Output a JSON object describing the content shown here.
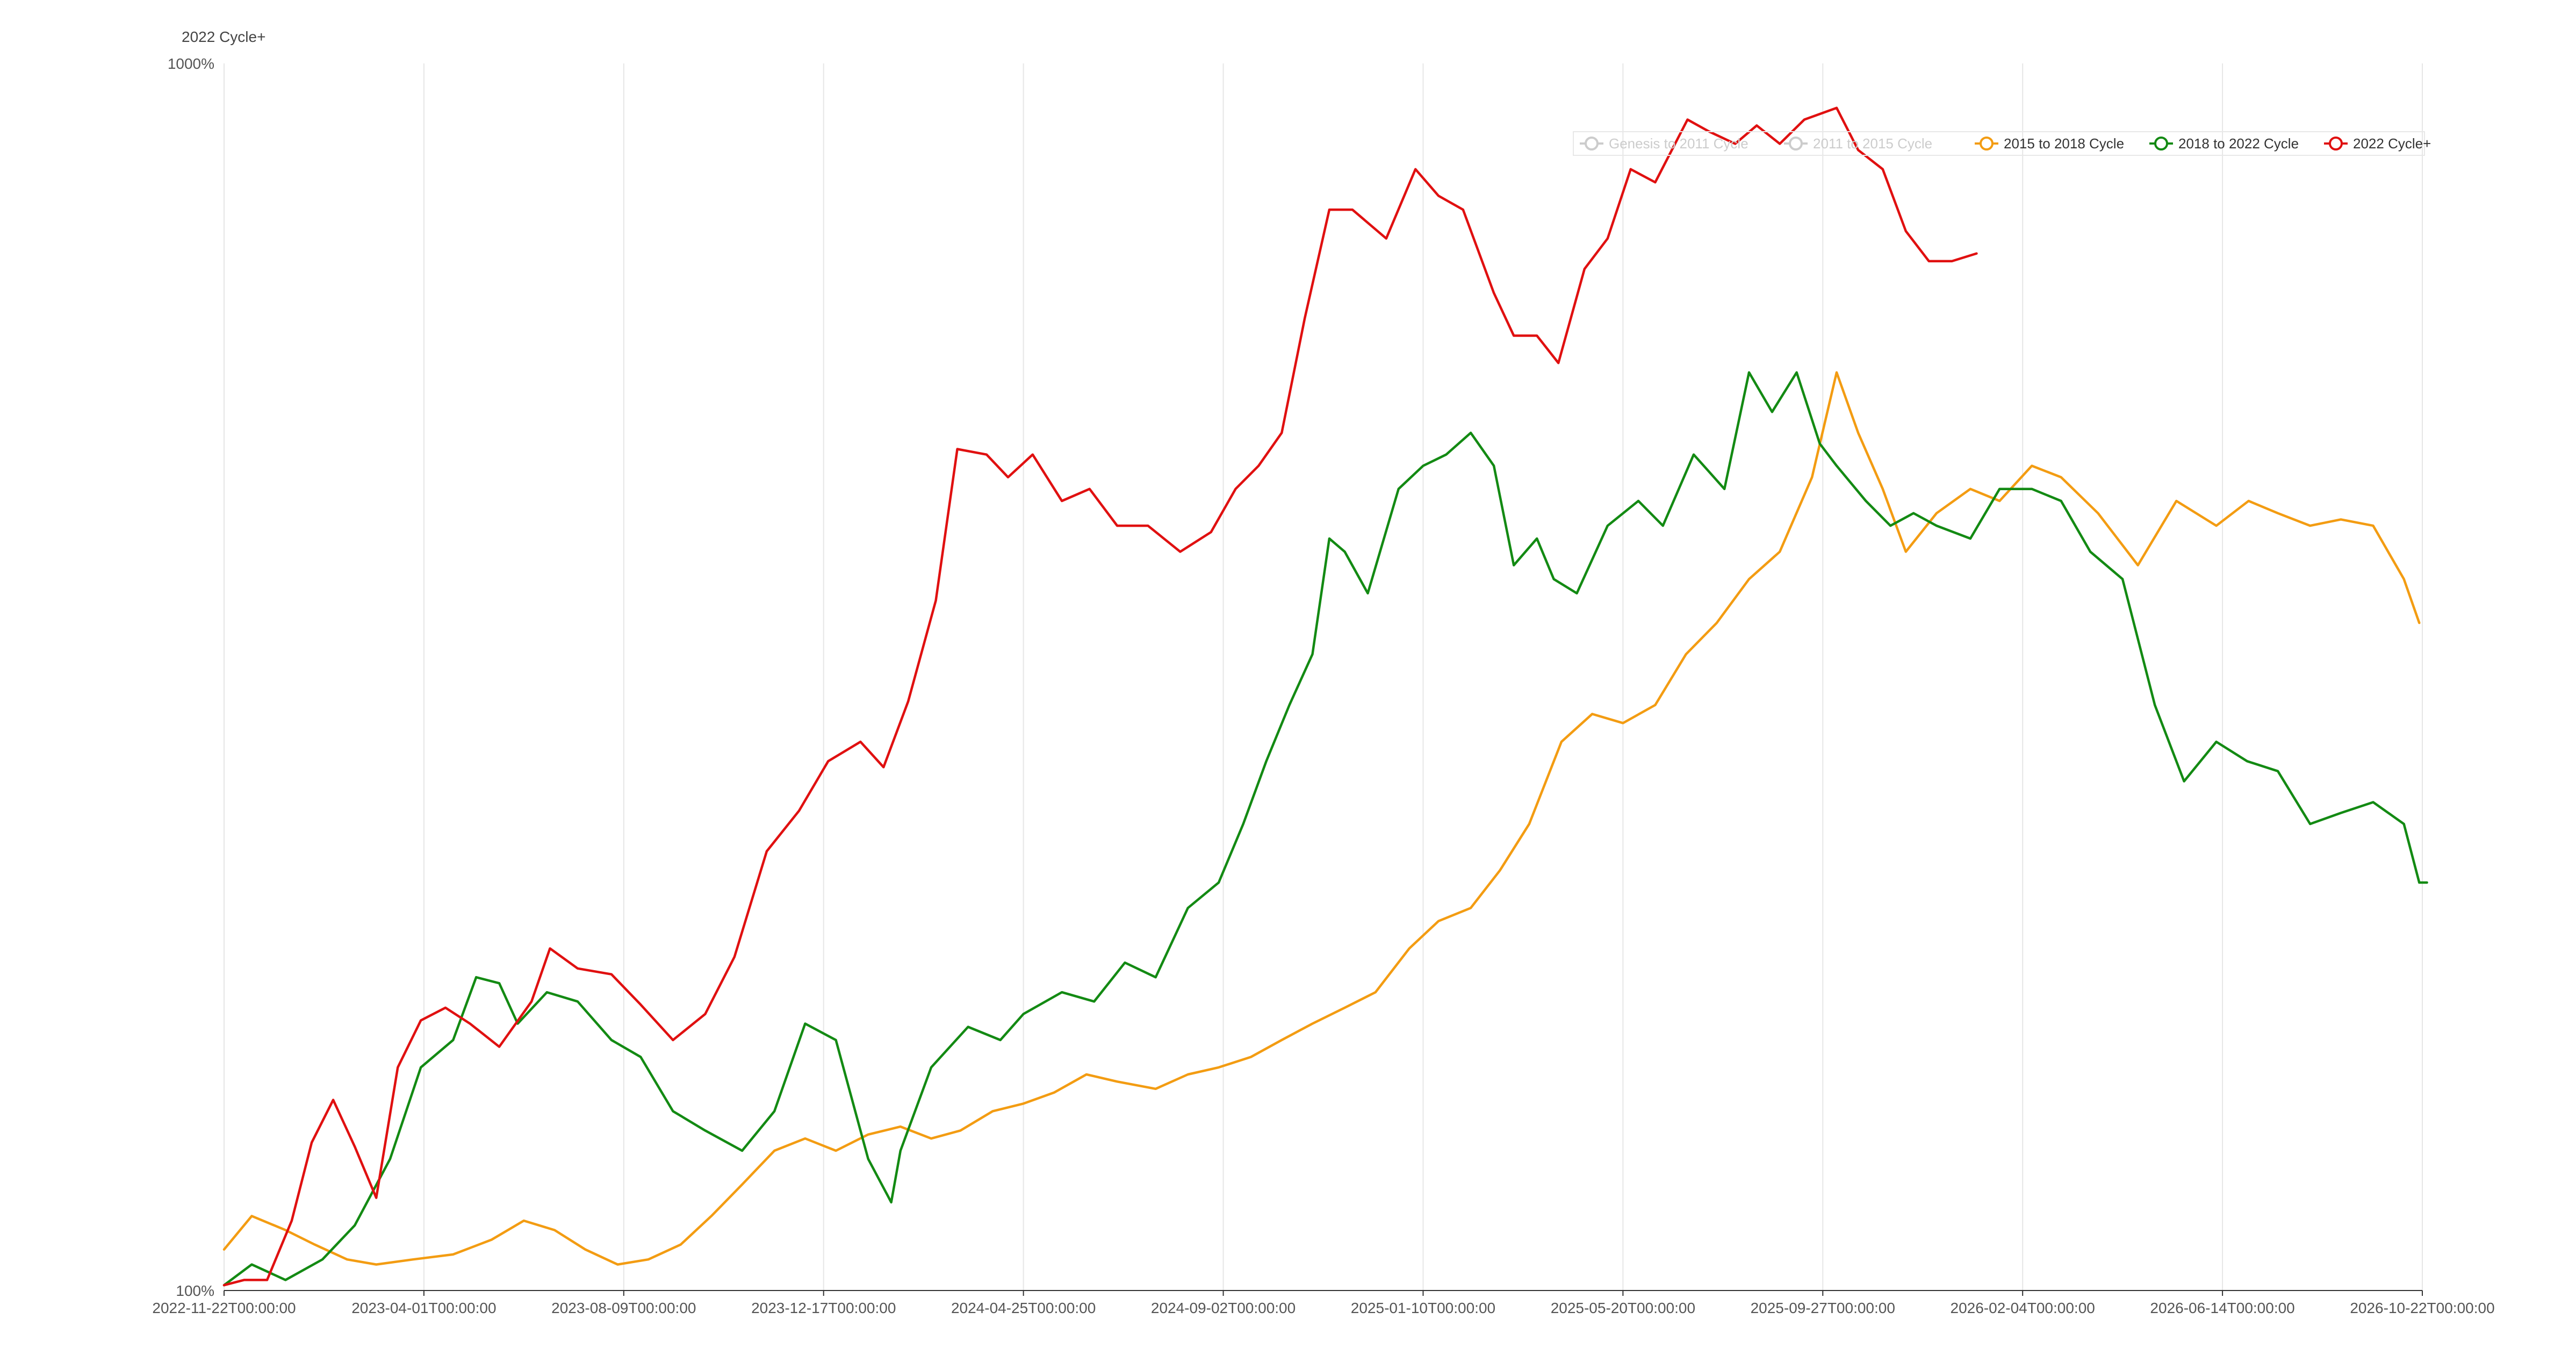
{
  "chart_data": {
    "type": "line",
    "y_axis_title": "2022 Cycle+",
    "y_scale": "log",
    "ylim": [
      100,
      1000
    ],
    "y_tick_labels": [
      "1000%",
      "100%"
    ],
    "x_tick_labels": [
      "2022-11-22T00:00:00",
      "2023-04-01T00:00:00",
      "2023-08-09T00:00:00",
      "2023-12-17T00:00:00",
      "2024-04-25T00:00:00",
      "2024-09-02T00:00:00",
      "2025-01-10T00:00:00",
      "2025-05-20T00:00:00",
      "2025-09-27T00:00:00",
      "2026-02-04T00:00:00",
      "2026-06-14T00:00:00",
      "2026-10-22T00:00:00"
    ],
    "x_range": [
      "2022-11-22",
      "2026-10-22"
    ],
    "grid": {
      "vertical": true,
      "horizontal": false
    },
    "legend_position": "top-right",
    "legend": [
      {
        "name": "Genesis to 2011 Cycle",
        "color": "#cccccc",
        "active": false
      },
      {
        "name": "2011 to 2015 Cycle",
        "color": "#cccccc",
        "active": false
      },
      {
        "name": "2015 to 2018 Cycle",
        "color": "#f39c12",
        "active": true
      },
      {
        "name": "2018 to 2022 Cycle",
        "color": "#138a13",
        "active": true
      },
      {
        "name": "2022 Cycle+",
        "color": "#e01010",
        "active": true
      }
    ],
    "series": [
      {
        "name": "2022 Cycle+",
        "color": "#e01010",
        "x": [
          "2022-11-22",
          "2022-12-05",
          "2022-12-20",
          "2023-01-05",
          "2023-01-18",
          "2023-02-01",
          "2023-02-15",
          "2023-03-01",
          "2023-03-15",
          "2023-03-30",
          "2023-04-15",
          "2023-05-01",
          "2023-05-20",
          "2023-06-10",
          "2023-06-22",
          "2023-07-10",
          "2023-08-01",
          "2023-08-20",
          "2023-09-10",
          "2023-10-01",
          "2023-10-20",
          "2023-11-10",
          "2023-12-01",
          "2023-12-20",
          "2024-01-10",
          "2024-01-25",
          "2024-02-10",
          "2024-02-28",
          "2024-03-13",
          "2024-04-01",
          "2024-04-15",
          "2024-05-01",
          "2024-05-20",
          "2024-06-07",
          "2024-06-25",
          "2024-07-15",
          "2024-08-05",
          "2024-08-25",
          "2024-09-10",
          "2024-09-25",
          "2024-10-10",
          "2024-10-25",
          "2024-11-10",
          "2024-11-25",
          "2024-12-17",
          "2025-01-05",
          "2025-01-20",
          "2025-02-05",
          "2025-02-25",
          "2025-03-10",
          "2025-03-25",
          "2025-04-08",
          "2025-04-25",
          "2025-05-10",
          "2025-05-25",
          "2025-06-10",
          "2025-07-01",
          "2025-07-15",
          "2025-08-01",
          "2025-08-15",
          "2025-08-30",
          "2025-09-15",
          "2025-10-06",
          "2025-10-20",
          "2025-11-05",
          "2025-11-20",
          "2025-12-05",
          "2025-12-20",
          "2026-01-05"
        ],
        "values": [
          101,
          102,
          102,
          114,
          132,
          143,
          131,
          119,
          152,
          166,
          170,
          165,
          158,
          172,
          190,
          183,
          181,
          171,
          160,
          168,
          187,
          228,
          246,
          270,
          280,
          267,
          302,
          365,
          485,
          480,
          460,
          480,
          440,
          450,
          420,
          420,
          400,
          415,
          450,
          470,
          500,
          620,
          760,
          760,
          720,
          820,
          780,
          760,
          650,
          600,
          600,
          570,
          680,
          720,
          820,
          800,
          900,
          880,
          860,
          890,
          860,
          900,
          920,
          850,
          820,
          730,
          690,
          690,
          700
        ]
      },
      {
        "name": "2018 to 2022 Cycle",
        "color": "#138a13",
        "x": [
          "2022-11-22",
          "2022-12-10",
          "2023-01-01",
          "2023-01-25",
          "2023-02-15",
          "2023-03-10",
          "2023-03-30",
          "2023-04-20",
          "2023-05-05",
          "2023-05-20",
          "2023-06-01",
          "2023-06-20",
          "2023-07-10",
          "2023-08-01",
          "2023-08-20",
          "2023-09-10",
          "2023-10-01",
          "2023-10-25",
          "2023-11-15",
          "2023-12-05",
          "2023-12-25",
          "2024-01-15",
          "2024-01-30",
          "2024-02-05",
          "2024-02-25",
          "2024-03-20",
          "2024-04-10",
          "2024-04-25",
          "2024-05-20",
          "2024-06-10",
          "2024-06-30",
          "2024-07-20",
          "2024-08-10",
          "2024-08-30",
          "2024-09-15",
          "2024-09-30",
          "2024-10-15",
          "2024-10-30",
          "2024-11-10",
          "2024-11-20",
          "2024-12-05",
          "2024-12-25",
          "2025-01-10",
          "2025-01-25",
          "2025-02-10",
          "2025-02-25",
          "2025-03-10",
          "2025-03-25",
          "2025-04-05",
          "2025-04-20",
          "2025-05-10",
          "2025-05-30",
          "2025-06-15",
          "2025-07-05",
          "2025-07-25",
          "2025-08-10",
          "2025-08-25",
          "2025-09-10",
          "2025-09-25",
          "2025-10-06",
          "2025-10-25",
          "2025-11-10",
          "2025-11-25",
          "2025-12-10",
          "2026-01-01",
          "2026-01-20",
          "2026-02-10",
          "2026-03-01",
          "2026-03-20",
          "2026-04-10",
          "2026-05-01",
          "2026-05-20",
          "2026-06-10",
          "2026-06-30",
          "2026-07-20",
          "2026-08-10",
          "2026-08-30",
          "2026-09-20",
          "2026-10-10",
          "2026-10-20",
          "2026-10-25"
        ],
        "values": [
          101,
          105,
          102,
          106,
          113,
          128,
          152,
          160,
          180,
          178,
          165,
          175,
          172,
          160,
          155,
          140,
          135,
          130,
          140,
          165,
          160,
          128,
          118,
          130,
          152,
          164,
          160,
          168,
          175,
          172,
          185,
          180,
          205,
          215,
          240,
          270,
          300,
          330,
          410,
          400,
          370,
          450,
          470,
          480,
          500,
          470,
          390,
          410,
          380,
          370,
          420,
          440,
          420,
          480,
          450,
          560,
          520,
          560,
          490,
          470,
          440,
          420,
          430,
          420,
          410,
          450,
          450,
          440,
          400,
          380,
          300,
          260,
          280,
          270,
          265,
          240,
          245,
          250,
          240,
          215,
          215
        ]
      },
      {
        "name": "2015 to 2018 Cycle",
        "color": "#f39c12",
        "x": [
          "2022-11-22",
          "2022-12-10",
          "2023-01-01",
          "2023-01-20",
          "2023-02-10",
          "2023-03-01",
          "2023-03-25",
          "2023-04-20",
          "2023-05-15",
          "2023-06-05",
          "2023-06-25",
          "2023-07-15",
          "2023-08-05",
          "2023-08-25",
          "2023-09-15",
          "2023-10-05",
          "2023-10-25",
          "2023-11-15",
          "2023-12-05",
          "2023-12-25",
          "2024-01-15",
          "2024-02-05",
          "2024-02-25",
          "2024-03-15",
          "2024-04-05",
          "2024-04-25",
          "2024-05-15",
          "2024-06-05",
          "2024-06-25",
          "2024-07-20",
          "2024-08-10",
          "2024-08-30",
          "2024-09-20",
          "2024-10-10",
          "2024-10-30",
          "2024-11-20",
          "2024-12-10",
          "2025-01-01",
          "2025-01-20",
          "2025-02-10",
          "2025-03-01",
          "2025-03-20",
          "2025-04-10",
          "2025-04-30",
          "2025-05-20",
          "2025-06-10",
          "2025-06-30",
          "2025-07-20",
          "2025-08-10",
          "2025-08-30",
          "2025-09-20",
          "2025-10-06",
          "2025-10-20",
          "2025-11-05",
          "2025-11-20",
          "2025-12-10",
          "2026-01-01",
          "2026-01-20",
          "2026-02-10",
          "2026-03-01",
          "2026-03-25",
          "2026-04-20",
          "2026-05-15",
          "2026-06-10",
          "2026-07-01",
          "2026-07-20",
          "2026-08-10",
          "2026-08-30",
          "2026-09-20",
          "2026-10-10",
          "2026-10-20"
        ],
        "values": [
          108,
          115,
          112,
          109,
          106,
          105,
          106,
          107,
          110,
          114,
          112,
          108,
          105,
          106,
          109,
          115,
          122,
          130,
          133,
          130,
          134,
          136,
          133,
          135,
          140,
          142,
          145,
          150,
          148,
          146,
          150,
          152,
          155,
          160,
          165,
          170,
          175,
          190,
          200,
          205,
          220,
          240,
          280,
          295,
          290,
          300,
          330,
          350,
          380,
          400,
          460,
          560,
          500,
          450,
          400,
          430,
          450,
          440,
          470,
          460,
          430,
          390,
          440,
          420,
          440,
          430,
          420,
          425,
          420,
          380,
          350
        ]
      }
    ]
  }
}
